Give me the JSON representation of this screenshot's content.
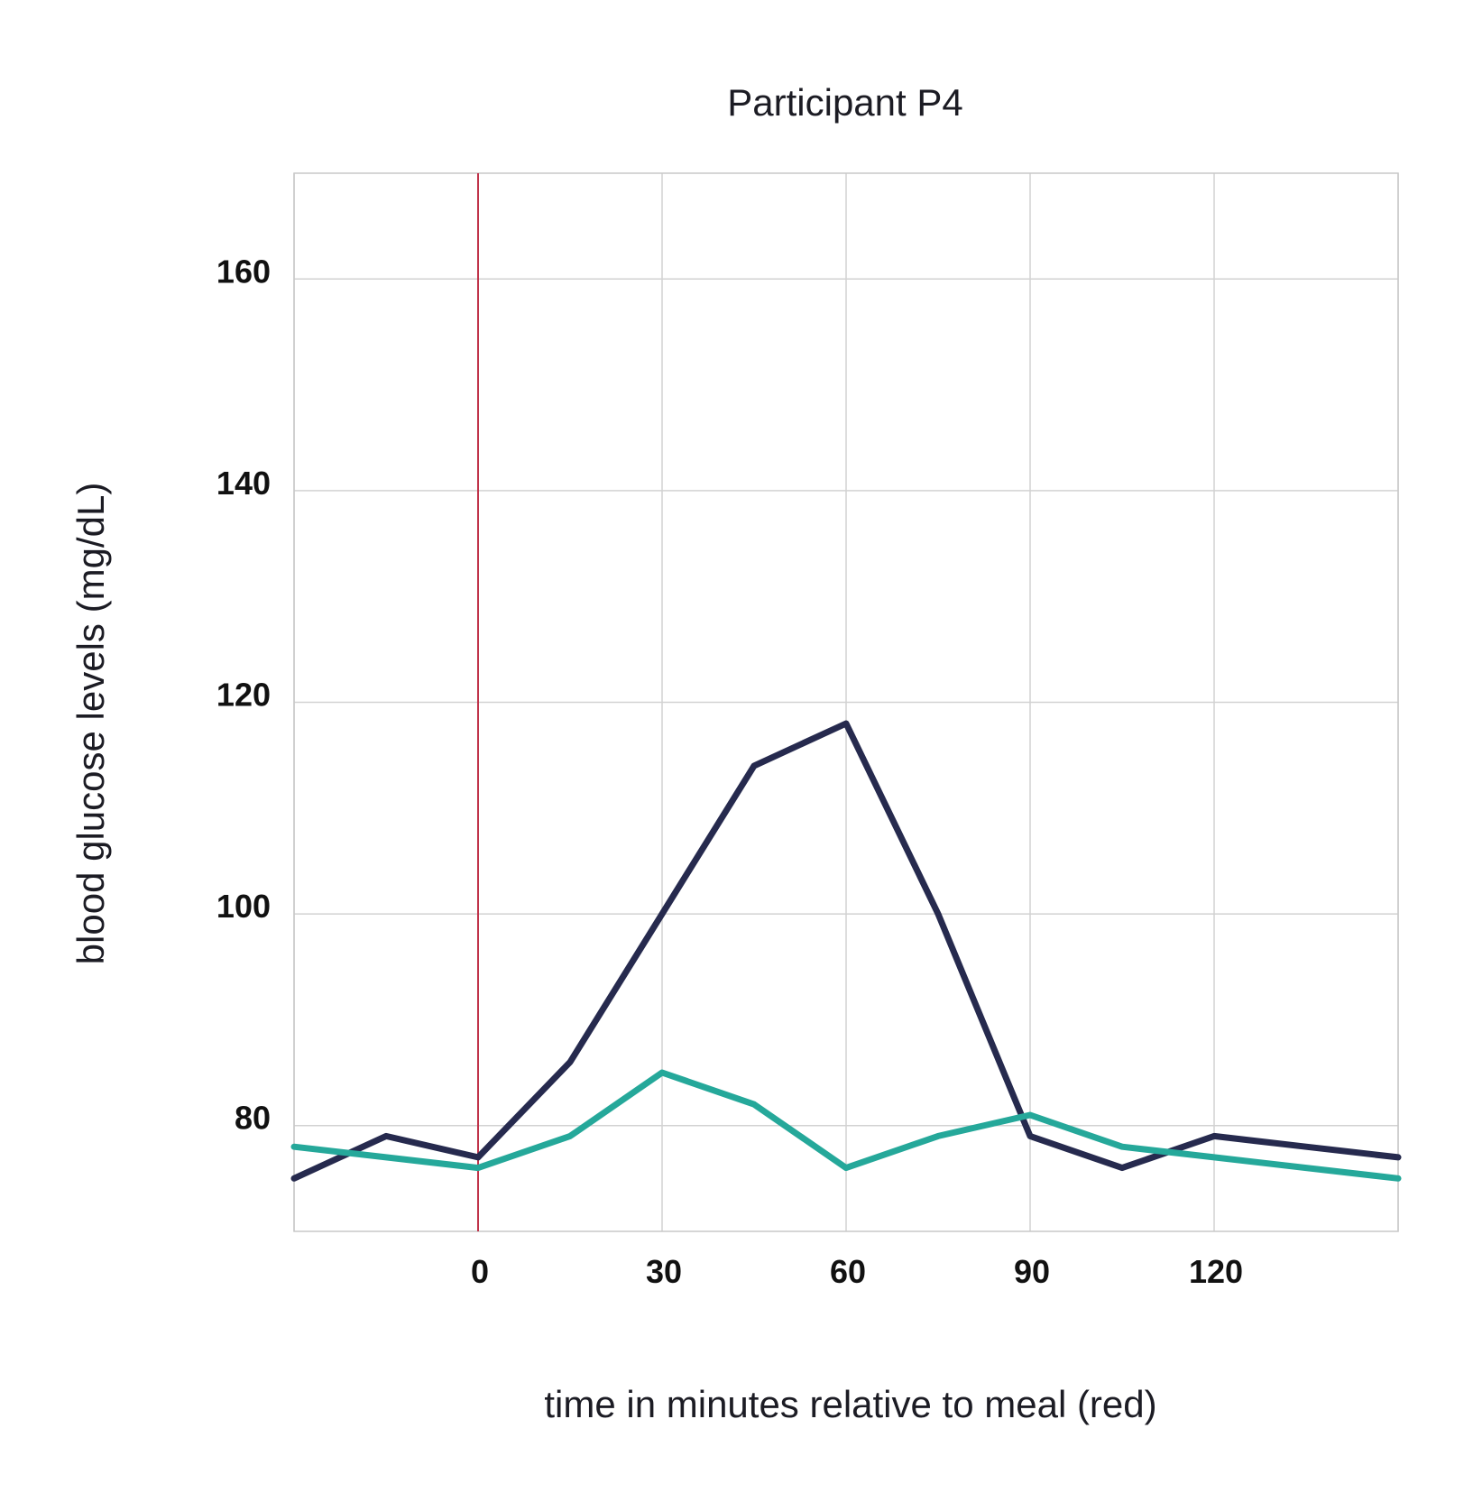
{
  "chart_data": {
    "type": "line",
    "title": "Participant P4",
    "xlabel": "time in minutes relative to meal (red)",
    "ylabel": "blood glucose levels (mg/dL)",
    "xlim": [
      -30,
      150
    ],
    "ylim": [
      70,
      170
    ],
    "xticks": [
      0,
      30,
      60,
      90,
      120
    ],
    "yticks": [
      80,
      100,
      120,
      140,
      160
    ],
    "x_grid": [
      -30,
      0,
      30,
      60,
      90,
      120,
      150
    ],
    "y_grid": [
      80,
      100,
      120,
      140,
      160
    ],
    "grid": true,
    "meal_marker": {
      "x": 0,
      "color": "#c0334a"
    },
    "x": [
      -30,
      -15,
      0,
      15,
      30,
      45,
      60,
      75,
      90,
      105,
      120,
      135,
      150
    ],
    "series": [
      {
        "color": "#262a4e",
        "values": [
          75,
          79,
          77,
          86,
          100,
          114,
          118,
          100,
          79,
          76,
          79,
          78,
          77
        ]
      },
      {
        "color": "#25a89a",
        "values": [
          78,
          77,
          76,
          79,
          85,
          82,
          76,
          79,
          81,
          78,
          77,
          76,
          75
        ]
      }
    ]
  }
}
